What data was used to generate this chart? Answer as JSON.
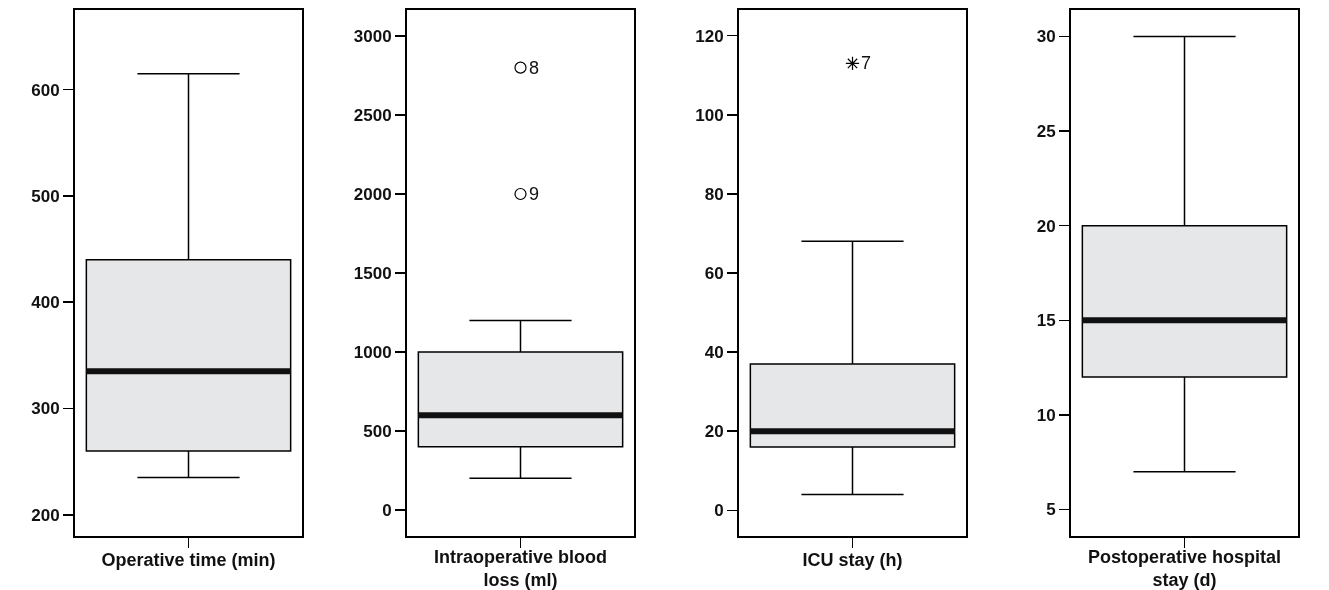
{
  "chart_data": [
    {
      "type": "box",
      "categories": [
        null
      ],
      "xlabel": "Operative time (min)",
      "ylim": [
        180,
        675
      ],
      "yticks": [
        200,
        300,
        400,
        500,
        600
      ],
      "grid": false,
      "legend": false,
      "color": "#e6e7e9",
      "boxes": [
        {
          "low": 235,
          "q1": 260,
          "median": 335,
          "q3": 440,
          "high": 615
        }
      ]
    },
    {
      "type": "box",
      "categories": [
        null
      ],
      "xlabel": "Intraoperative blood loss (ml)",
      "ylim": [
        -165,
        3165
      ],
      "yticks": [
        0,
        500,
        1000,
        1500,
        2000,
        2500,
        3000
      ],
      "grid": false,
      "legend": false,
      "color": "#e6e7e9",
      "marker": "circle",
      "boxes": [
        {
          "low": 200,
          "q1": 400,
          "median": 600,
          "q3": 1000,
          "high": 1200,
          "outliers": [
            2800,
            2000
          ]
        }
      ],
      "annotations": [
        "8",
        "9"
      ]
    },
    {
      "type": "box",
      "categories": [
        null
      ],
      "xlabel": "ICU stay (h)",
      "ylim": [
        -6.5,
        126.5
      ],
      "yticks": [
        0,
        20,
        40,
        60,
        80,
        100,
        120
      ],
      "grid": false,
      "legend": false,
      "color": "#e6e7e9",
      "marker": "star",
      "boxes": [
        {
          "low": 4,
          "q1": 16,
          "median": 20,
          "q3": 37,
          "high": 68,
          "outliers": [
            113
          ]
        }
      ],
      "annotations": [
        "7"
      ]
    },
    {
      "type": "box",
      "categories": [
        null
      ],
      "xlabel": "Postoperative hospital stay (d)",
      "ylim": [
        3.6,
        31.4
      ],
      "yticks": [
        5,
        10,
        15,
        20,
        25,
        30
      ],
      "grid": false,
      "legend": false,
      "color": "#e6e7e9",
      "boxes": [
        {
          "low": 7,
          "q1": 12,
          "median": 15,
          "q3": 20,
          "high": 30
        }
      ]
    }
  ]
}
